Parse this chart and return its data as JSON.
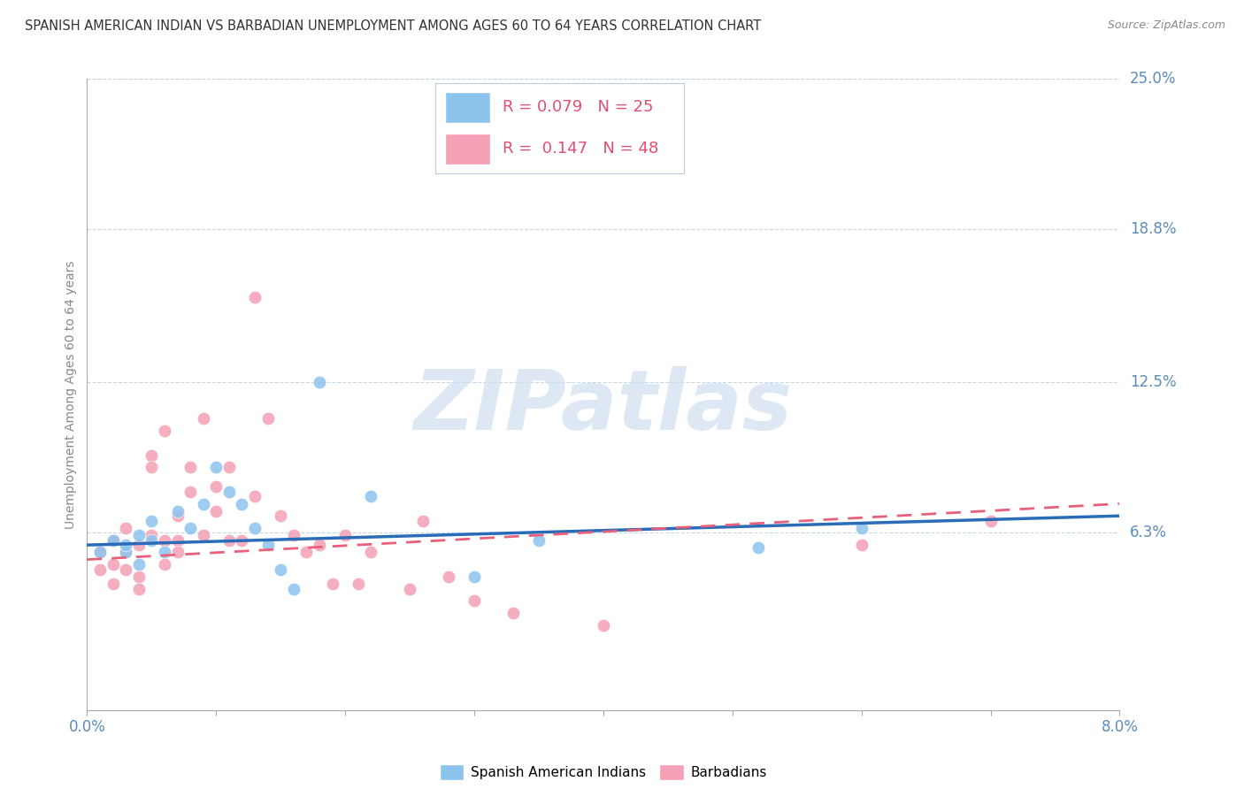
{
  "title": "SPANISH AMERICAN INDIAN VS BARBADIAN UNEMPLOYMENT AMONG AGES 60 TO 64 YEARS CORRELATION CHART",
  "source": "Source: ZipAtlas.com",
  "ylabel": "Unemployment Among Ages 60 to 64 years",
  "xlim": [
    0.0,
    0.08
  ],
  "ylim": [
    -0.01,
    0.25
  ],
  "ytick_values": [
    0.063,
    0.125,
    0.188,
    0.25
  ],
  "ytick_labels": [
    "6.3%",
    "12.5%",
    "18.8%",
    "25.0%"
  ],
  "blue_color": "#8DC4EE",
  "pink_color": "#F4A0B5",
  "blue_line_color": "#2B6CB8",
  "pink_line_color": "#E8607A",
  "legend_blue_R": "0.079",
  "legend_blue_N": "25",
  "legend_pink_R": "0.147",
  "legend_pink_N": "48",
  "watermark": "ZIPatlas",
  "watermark_blue": "#C8D8F0",
  "watermark_pink": "#D8A8B8",
  "blue_x": [
    0.001,
    0.002,
    0.003,
    0.003,
    0.004,
    0.004,
    0.005,
    0.005,
    0.006,
    0.007,
    0.008,
    0.009,
    0.01,
    0.011,
    0.012,
    0.013,
    0.014,
    0.015,
    0.016,
    0.018,
    0.022,
    0.03,
    0.035,
    0.052,
    0.06
  ],
  "blue_y": [
    0.055,
    0.06,
    0.055,
    0.058,
    0.062,
    0.05,
    0.068,
    0.06,
    0.055,
    0.072,
    0.065,
    0.075,
    0.09,
    0.08,
    0.075,
    0.065,
    0.058,
    0.048,
    0.04,
    0.125,
    0.078,
    0.045,
    0.06,
    0.057,
    0.065
  ],
  "pink_x": [
    0.001,
    0.001,
    0.002,
    0.002,
    0.002,
    0.003,
    0.003,
    0.003,
    0.004,
    0.004,
    0.004,
    0.005,
    0.005,
    0.005,
    0.006,
    0.006,
    0.006,
    0.007,
    0.007,
    0.007,
    0.008,
    0.008,
    0.009,
    0.009,
    0.01,
    0.01,
    0.011,
    0.011,
    0.012,
    0.013,
    0.013,
    0.014,
    0.015,
    0.016,
    0.017,
    0.018,
    0.019,
    0.02,
    0.021,
    0.022,
    0.025,
    0.026,
    0.028,
    0.03,
    0.033,
    0.04,
    0.06,
    0.07
  ],
  "pink_y": [
    0.048,
    0.055,
    0.05,
    0.06,
    0.042,
    0.055,
    0.048,
    0.065,
    0.058,
    0.045,
    0.04,
    0.062,
    0.095,
    0.09,
    0.06,
    0.105,
    0.05,
    0.06,
    0.07,
    0.055,
    0.08,
    0.09,
    0.062,
    0.11,
    0.072,
    0.082,
    0.06,
    0.09,
    0.06,
    0.078,
    0.16,
    0.11,
    0.07,
    0.062,
    0.055,
    0.058,
    0.042,
    0.062,
    0.042,
    0.055,
    0.04,
    0.068,
    0.045,
    0.035,
    0.03,
    0.025,
    0.058,
    0.068
  ]
}
